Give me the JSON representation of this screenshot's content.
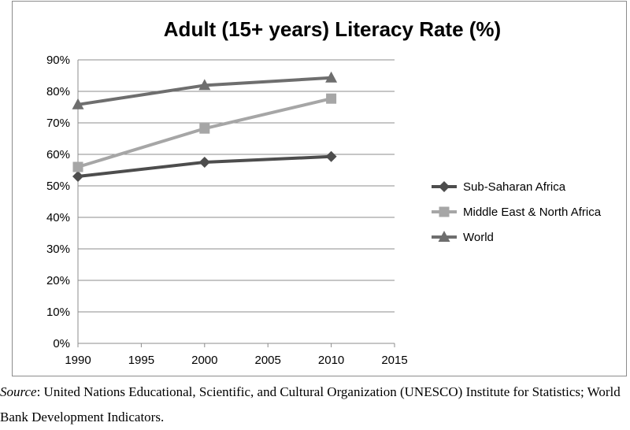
{
  "chart_data": {
    "type": "line",
    "title": "Adult (15+ years) Literacy Rate (%)",
    "xlabel": "",
    "ylabel": "",
    "x": [
      1990,
      2000,
      2010
    ],
    "xlim": [
      1990,
      2015
    ],
    "xticks": [
      "1990",
      "1995",
      "2000",
      "2005",
      "2010",
      "2015"
    ],
    "ylim": [
      0,
      90
    ],
    "yticks": [
      "0%",
      "10%",
      "20%",
      "30%",
      "40%",
      "50%",
      "60%",
      "70%",
      "80%",
      "90%"
    ],
    "grid": true,
    "legend_position": "right",
    "series": [
      {
        "name": "Sub-Saharan Africa",
        "values": [
          53,
          57.5,
          59.3
        ],
        "color": "#4d4d4d",
        "marker": "diamond"
      },
      {
        "name": "Middle East & North Africa",
        "values": [
          56,
          68.2,
          77.7
        ],
        "color": "#a6a6a6",
        "marker": "square"
      },
      {
        "name": "World",
        "values": [
          75.8,
          81.9,
          84.3
        ],
        "color": "#6e6e6e",
        "marker": "triangle"
      }
    ]
  },
  "source": {
    "label": "Source",
    "text": ": United Nations Educational, Scientific, and Cultural Organization (UNESCO) Institute for Statistics; World Bank Development Indicators."
  }
}
